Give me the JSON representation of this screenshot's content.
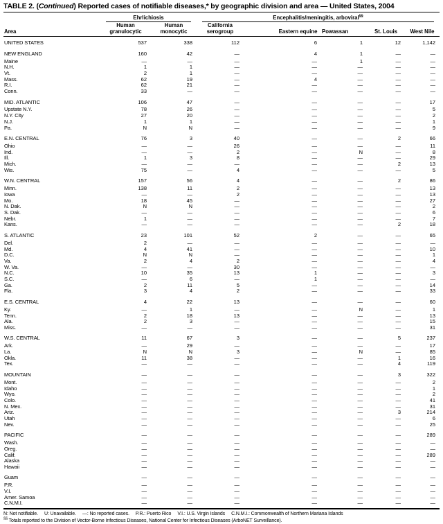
{
  "colors": {
    "text": "#000000",
    "background": "#ffffff",
    "rules": "#000000"
  },
  "title": {
    "prefix": "TABLE 2. (",
    "continued": "Continued",
    "rest": ") Reported cases of notifiable diseases,* by geographic division and area — United States, 2004"
  },
  "table": {
    "area_header": "Area",
    "groups": [
      {
        "label": "Ehrlichiosis",
        "span": 2,
        "marker": ""
      },
      {
        "label": "Encephalitis/meningitis,  arboviral",
        "span": 5,
        "marker": "§§"
      }
    ],
    "columns": [
      "Human granulocytic",
      "Human monocytic",
      "California serogroup",
      "Eastern equine",
      "Powassan",
      "St. Louis",
      "West Nile"
    ],
    "sections": [
      {
        "rows": [
          {
            "area": "UNITED STATES",
            "values": [
              "537",
              "338",
              "112",
              "6",
              "1",
              "12",
              "1,142"
            ]
          }
        ]
      },
      {
        "rows": [
          {
            "area": "NEW ENGLAND",
            "values": [
              "160",
              "42",
              "—",
              "4",
              "1",
              "—",
              "—"
            ]
          },
          {
            "area": "Maine",
            "values": [
              "—",
              "—",
              "—",
              "—",
              "1",
              "—",
              "—"
            ]
          },
          {
            "area": "N.H.",
            "values": [
              "1",
              "1",
              "—",
              "—",
              "—",
              "—",
              "—"
            ]
          },
          {
            "area": "Vt.",
            "values": [
              "2",
              "1",
              "—",
              "—",
              "—",
              "—",
              "—"
            ]
          },
          {
            "area": "Mass.",
            "values": [
              "62",
              "19",
              "—",
              "4",
              "—",
              "—",
              "—"
            ]
          },
          {
            "area": "R.I.",
            "values": [
              "62",
              "21",
              "—",
              "—",
              "—",
              "—",
              "—"
            ]
          },
          {
            "area": "Conn.",
            "values": [
              "33",
              "—",
              "—",
              "—",
              "—",
              "—",
              "—"
            ]
          }
        ]
      },
      {
        "rows": [
          {
            "area": "MID. ATLANTIC",
            "values": [
              "106",
              "47",
              "—",
              "—",
              "—",
              "—",
              "17"
            ]
          },
          {
            "area": "Upstate N.Y.",
            "values": [
              "78",
              "26",
              "—",
              "—",
              "—",
              "—",
              "5"
            ]
          },
          {
            "area": "N.Y. City",
            "values": [
              "27",
              "20",
              "—",
              "—",
              "—",
              "—",
              "2"
            ]
          },
          {
            "area": "N.J.",
            "values": [
              "1",
              "1",
              "—",
              "—",
              "—",
              "—",
              "1"
            ]
          },
          {
            "area": "Pa.",
            "values": [
              "N",
              "N",
              "—",
              "—",
              "—",
              "—",
              "9"
            ]
          }
        ]
      },
      {
        "rows": [
          {
            "area": "E.N. CENTRAL",
            "values": [
              "76",
              "3",
              "40",
              "—",
              "—",
              "2",
              "66"
            ]
          },
          {
            "area": "Ohio",
            "values": [
              "—",
              "—",
              "26",
              "—",
              "—",
              "—",
              "11"
            ]
          },
          {
            "area": "Ind.",
            "values": [
              "—",
              "—",
              "2",
              "—",
              "N",
              "—",
              "8"
            ]
          },
          {
            "area": "Ill.",
            "values": [
              "1",
              "3",
              "8",
              "—",
              "—",
              "—",
              "29"
            ]
          },
          {
            "area": "Mich.",
            "values": [
              "—",
              "—",
              "—",
              "—",
              "—",
              "2",
              "13"
            ]
          },
          {
            "area": "Wis.",
            "values": [
              "75",
              "—",
              "4",
              "—",
              "—",
              "—",
              "5"
            ]
          }
        ]
      },
      {
        "rows": [
          {
            "area": "W.N. CENTRAL",
            "values": [
              "157",
              "56",
              "4",
              "—",
              "—",
              "2",
              "86"
            ]
          },
          {
            "area": "Minn.",
            "values": [
              "138",
              "11",
              "2",
              "—",
              "—",
              "—",
              "13"
            ]
          },
          {
            "area": "Iowa",
            "values": [
              "—",
              "—",
              "2",
              "—",
              "—",
              "—",
              "13"
            ]
          },
          {
            "area": "Mo.",
            "values": [
              "18",
              "45",
              "—",
              "—",
              "—",
              "—",
              "27"
            ]
          },
          {
            "area": "N. Dak.",
            "values": [
              "N",
              "N",
              "—",
              "—",
              "—",
              "—",
              "2"
            ]
          },
          {
            "area": "S. Dak.",
            "values": [
              "—",
              "—",
              "—",
              "—",
              "—",
              "—",
              "6"
            ]
          },
          {
            "area": "Nebr.",
            "values": [
              "1",
              "—",
              "—",
              "—",
              "—",
              "—",
              "7"
            ]
          },
          {
            "area": "Kans.",
            "values": [
              "—",
              "—",
              "—",
              "—",
              "—",
              "2",
              "18"
            ]
          }
        ]
      },
      {
        "rows": [
          {
            "area": "S. ATLANTIC",
            "values": [
              "23",
              "101",
              "52",
              "2",
              "—",
              "—",
              "65"
            ]
          },
          {
            "area": "Del.",
            "values": [
              "2",
              "—",
              "—",
              "—",
              "—",
              "—",
              "—"
            ]
          },
          {
            "area": "Md.",
            "values": [
              "4",
              "41",
              "—",
              "—",
              "—",
              "—",
              "10"
            ]
          },
          {
            "area": "D.C.",
            "values": [
              "N",
              "N",
              "—",
              "—",
              "—",
              "—",
              "1"
            ]
          },
          {
            "area": "Va.",
            "values": [
              "2",
              "4",
              "2",
              "—",
              "—",
              "—",
              "4"
            ]
          },
          {
            "area": "W. Va.",
            "values": [
              "—",
              "—",
              "30",
              "—",
              "—",
              "—",
              "—"
            ]
          },
          {
            "area": "N.C.",
            "values": [
              "10",
              "35",
              "13",
              "1",
              "—",
              "—",
              "3"
            ]
          },
          {
            "area": "S.C.",
            "values": [
              "—",
              "6",
              "—",
              "1",
              "—",
              "—",
              "—"
            ]
          },
          {
            "area": "Ga.",
            "values": [
              "2",
              "11",
              "5",
              "—",
              "—",
              "—",
              "14"
            ]
          },
          {
            "area": "Fla.",
            "values": [
              "3",
              "4",
              "2",
              "—",
              "—",
              "—",
              "33"
            ]
          }
        ]
      },
      {
        "rows": [
          {
            "area": "E.S. CENTRAL",
            "values": [
              "4",
              "22",
              "13",
              "—",
              "—",
              "—",
              "60"
            ]
          },
          {
            "area": "Ky.",
            "values": [
              "—",
              "1",
              "—",
              "—",
              "N",
              "—",
              "1"
            ]
          },
          {
            "area": "Tenn.",
            "values": [
              "2",
              "18",
              "13",
              "—",
              "—",
              "—",
              "13"
            ]
          },
          {
            "area": "Ala.",
            "values": [
              "2",
              "3",
              "—",
              "—",
              "—",
              "—",
              "15"
            ]
          },
          {
            "area": "Miss.",
            "values": [
              "—",
              "—",
              "—",
              "—",
              "—",
              "—",
              "31"
            ]
          }
        ]
      },
      {
        "rows": [
          {
            "area": "W.S. CENTRAL",
            "values": [
              "11",
              "67",
              "3",
              "—",
              "—",
              "5",
              "237"
            ]
          },
          {
            "area": "Ark.",
            "values": [
              "—",
              "29",
              "—",
              "—",
              "—",
              "—",
              "17"
            ]
          },
          {
            "area": "La.",
            "values": [
              "N",
              "N",
              "3",
              "—",
              "N",
              "—",
              "85"
            ]
          },
          {
            "area": "Okla.",
            "values": [
              "11",
              "38",
              "—",
              "—",
              "—",
              "1",
              "16"
            ]
          },
          {
            "area": "Tex.",
            "values": [
              "—",
              "—",
              "—",
              "—",
              "—",
              "4",
              "119"
            ]
          }
        ]
      },
      {
        "rows": [
          {
            "area": "MOUNTAIN",
            "values": [
              "—",
              "—",
              "—",
              "—",
              "—",
              "3",
              "322"
            ]
          },
          {
            "area": "Mont.",
            "values": [
              "—",
              "—",
              "—",
              "—",
              "—",
              "—",
              "2"
            ]
          },
          {
            "area": "Idaho",
            "values": [
              "—",
              "—",
              "—",
              "—",
              "—",
              "—",
              "1"
            ]
          },
          {
            "area": "Wyo.",
            "values": [
              "—",
              "—",
              "—",
              "—",
              "—",
              "—",
              "2"
            ]
          },
          {
            "area": "Colo.",
            "values": [
              "—",
              "—",
              "—",
              "—",
              "—",
              "—",
              "41"
            ]
          },
          {
            "area": "N. Mex.",
            "values": [
              "—",
              "—",
              "—",
              "—",
              "—",
              "—",
              "31"
            ]
          },
          {
            "area": "Ariz.",
            "values": [
              "—",
              "—",
              "—",
              "—",
              "—",
              "3",
              "214"
            ]
          },
          {
            "area": "Utah",
            "values": [
              "—",
              "—",
              "—",
              "—",
              "—",
              "—",
              "6"
            ]
          },
          {
            "area": "Nev.",
            "values": [
              "—",
              "—",
              "—",
              "—",
              "—",
              "—",
              "25"
            ]
          }
        ]
      },
      {
        "rows": [
          {
            "area": "PACIFIC",
            "values": [
              "—",
              "—",
              "—",
              "—",
              "—",
              "—",
              "289"
            ]
          },
          {
            "area": "Wash.",
            "values": [
              "—",
              "—",
              "—",
              "—",
              "—",
              "—",
              "—"
            ]
          },
          {
            "area": "Oreg.",
            "values": [
              "—",
              "—",
              "—",
              "—",
              "—",
              "—",
              "—"
            ]
          },
          {
            "area": "Calif.",
            "values": [
              "—",
              "—",
              "—",
              "—",
              "—",
              "—",
              "289"
            ]
          },
          {
            "area": "Alaska",
            "values": [
              "—",
              "—",
              "—",
              "—",
              "—",
              "—",
              "—"
            ]
          },
          {
            "area": "Hawaii",
            "values": [
              "—",
              "—",
              "—",
              "—",
              "—",
              "—",
              "—"
            ]
          }
        ]
      },
      {
        "rows": [
          {
            "area": "Guam",
            "values": [
              "—",
              "—",
              "—",
              "—",
              "—",
              "—",
              "—"
            ]
          },
          {
            "area": "P.R.",
            "values": [
              "—",
              "—",
              "—",
              "—",
              "—",
              "—",
              "—"
            ]
          },
          {
            "area": "V.I.",
            "values": [
              "—",
              "—",
              "—",
              "—",
              "—",
              "—",
              "—"
            ]
          },
          {
            "area": "Amer. Samoa",
            "values": [
              "—",
              "—",
              "—",
              "—",
              "—",
              "—",
              "—"
            ]
          },
          {
            "area": "C.N.M.I.",
            "values": [
              "—",
              "—",
              "—",
              "—",
              "—",
              "—",
              "—"
            ]
          }
        ]
      }
    ]
  },
  "footnotes": {
    "line1_segments": [
      "N: Not notifiable.",
      "U: Unavailable.",
      "—: No reported cases.",
      "P.R.: Puerto Rico",
      "V.I.: U.S. Virgin Islands",
      "C.N.M.I.: Commonwealth of Northern Mariana Islands"
    ],
    "note2_marker": "§§",
    "note2_text": " Totals reported to the Division of Vector-Borne Infectious Diseases, National Center for Infectious Diseases (ArboNET Surveillance)."
  }
}
